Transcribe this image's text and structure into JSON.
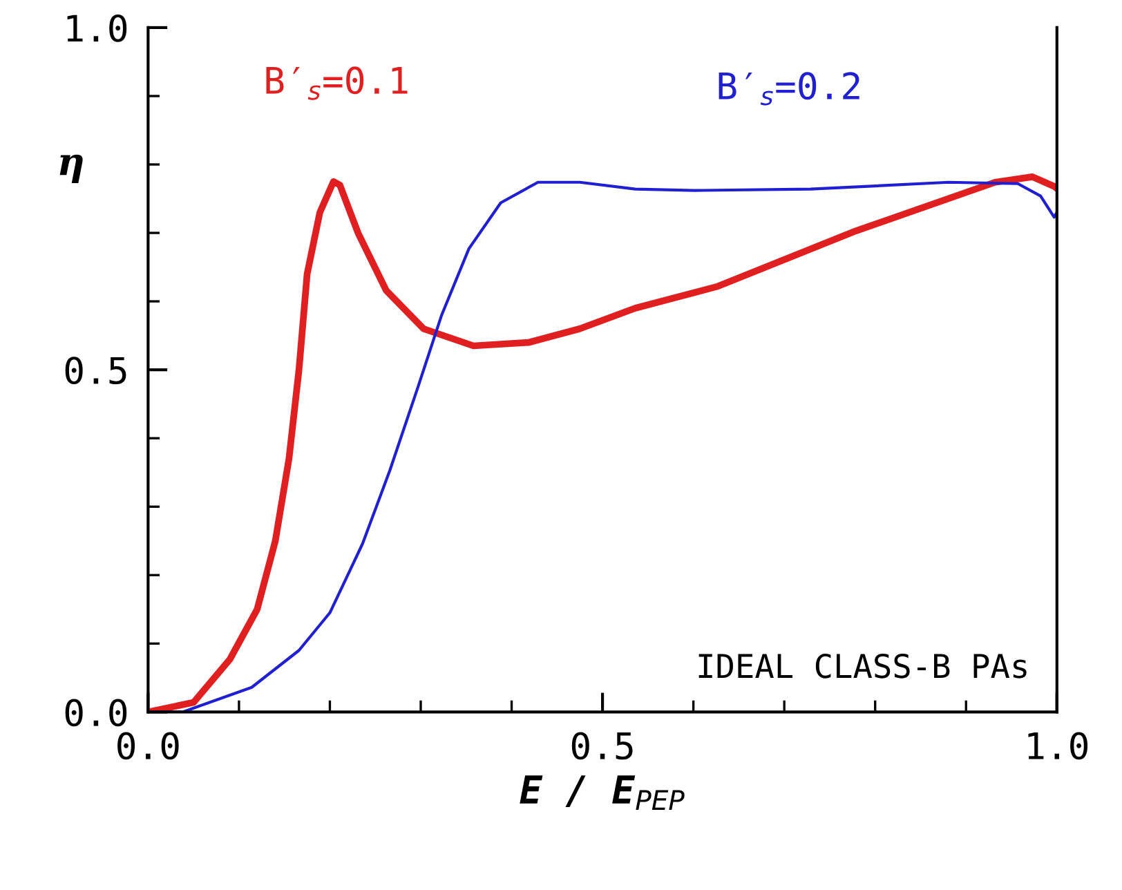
{
  "chart_data": {
    "type": "line",
    "xlabel": "E / E$_{PEP}$",
    "ylabel": "η",
    "xlim": [
      0,
      1
    ],
    "ylim": [
      0,
      1
    ],
    "xticks": [
      {
        "value": 0,
        "label": "0.0"
      },
      {
        "value": 0.5,
        "label": "0.5"
      },
      {
        "value": 1,
        "label": "1.0"
      }
    ],
    "yticks": [
      {
        "value": 0,
        "label": "0.0"
      },
      {
        "value": 0.5,
        "label": "0.5"
      },
      {
        "value": 1,
        "label": "1.0"
      }
    ],
    "grid": false,
    "legend": false,
    "marker": "none",
    "line_style": "solid",
    "annotations": [
      "IDEAL CLASS-B PAs"
    ],
    "series": [
      {
        "name": "B′$_{s}$=0.1",
        "color": "#e02020",
        "x": [
          0,
          0.05,
          0.09,
          0.12,
          0.14,
          0.155,
          0.166,
          0.175,
          0.189,
          0.204,
          0.211,
          0.231,
          0.262,
          0.303,
          0.358,
          0.419,
          0.475,
          0.536,
          0.627,
          0.779,
          0.932,
          0.973,
          0.997,
          1.0
        ],
        "values": [
          0,
          0.014,
          0.077,
          0.15,
          0.25,
          0.37,
          0.5,
          0.64,
          0.73,
          0.775,
          0.77,
          0.7,
          0.616,
          0.56,
          0.535,
          0.54,
          0.56,
          0.59,
          0.622,
          0.703,
          0.774,
          0.782,
          0.768,
          0.765
        ]
      },
      {
        "name": "B′$_{s}$=0.2",
        "color": "#2020d0",
        "x": [
          0,
          0.038,
          0.114,
          0.166,
          0.2,
          0.236,
          0.266,
          0.297,
          0.323,
          0.353,
          0.388,
          0.429,
          0.475,
          0.536,
          0.601,
          0.729,
          0.881,
          0.957,
          0.982,
          0.997,
          1.0
        ],
        "values": [
          0,
          0,
          0.036,
          0.09,
          0.145,
          0.246,
          0.353,
          0.475,
          0.58,
          0.677,
          0.744,
          0.774,
          0.774,
          0.764,
          0.762,
          0.764,
          0.774,
          0.772,
          0.754,
          0.723,
          0.73
        ]
      }
    ]
  }
}
